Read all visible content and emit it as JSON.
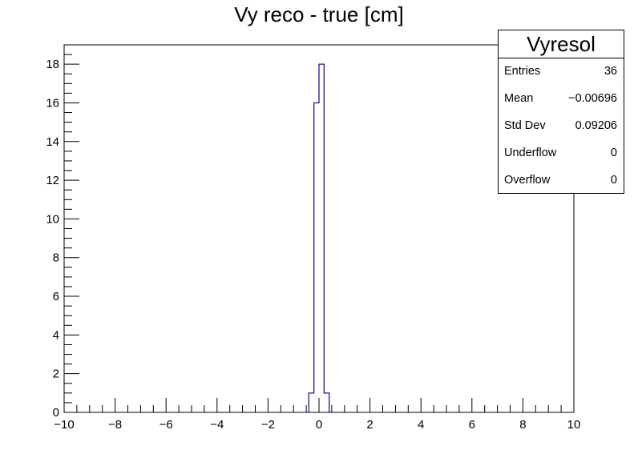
{
  "chart_data": {
    "type": "bar",
    "title": "Vy reco - true [cm]",
    "xlim": [
      -10,
      10
    ],
    "ylim": [
      0,
      19
    ],
    "x_ticks": [
      "−10",
      "−8",
      "−6",
      "−4",
      "−2",
      "0",
      "2",
      "4",
      "6",
      "8",
      "10"
    ],
    "y_ticks": [
      "0",
      "2",
      "4",
      "6",
      "8",
      "10",
      "12",
      "14",
      "16",
      "18"
    ],
    "histogram_color": "#1a1a8c",
    "bins": [
      {
        "low": -0.4,
        "high": -0.2,
        "count": 1
      },
      {
        "low": -0.2,
        "high": 0.0,
        "count": 16
      },
      {
        "low": 0.0,
        "high": 0.2,
        "count": 18
      },
      {
        "low": 0.2,
        "high": 0.4,
        "count": 1
      }
    ],
    "stats_box": {
      "name": "Vyresol",
      "rows": [
        {
          "label": "Entries",
          "value": "36"
        },
        {
          "label": "Mean",
          "value": "−0.00696"
        },
        {
          "label": "Std Dev",
          "value": "0.09206"
        },
        {
          "label": "Underflow",
          "value": "0"
        },
        {
          "label": "Overflow",
          "value": "0"
        }
      ]
    }
  }
}
